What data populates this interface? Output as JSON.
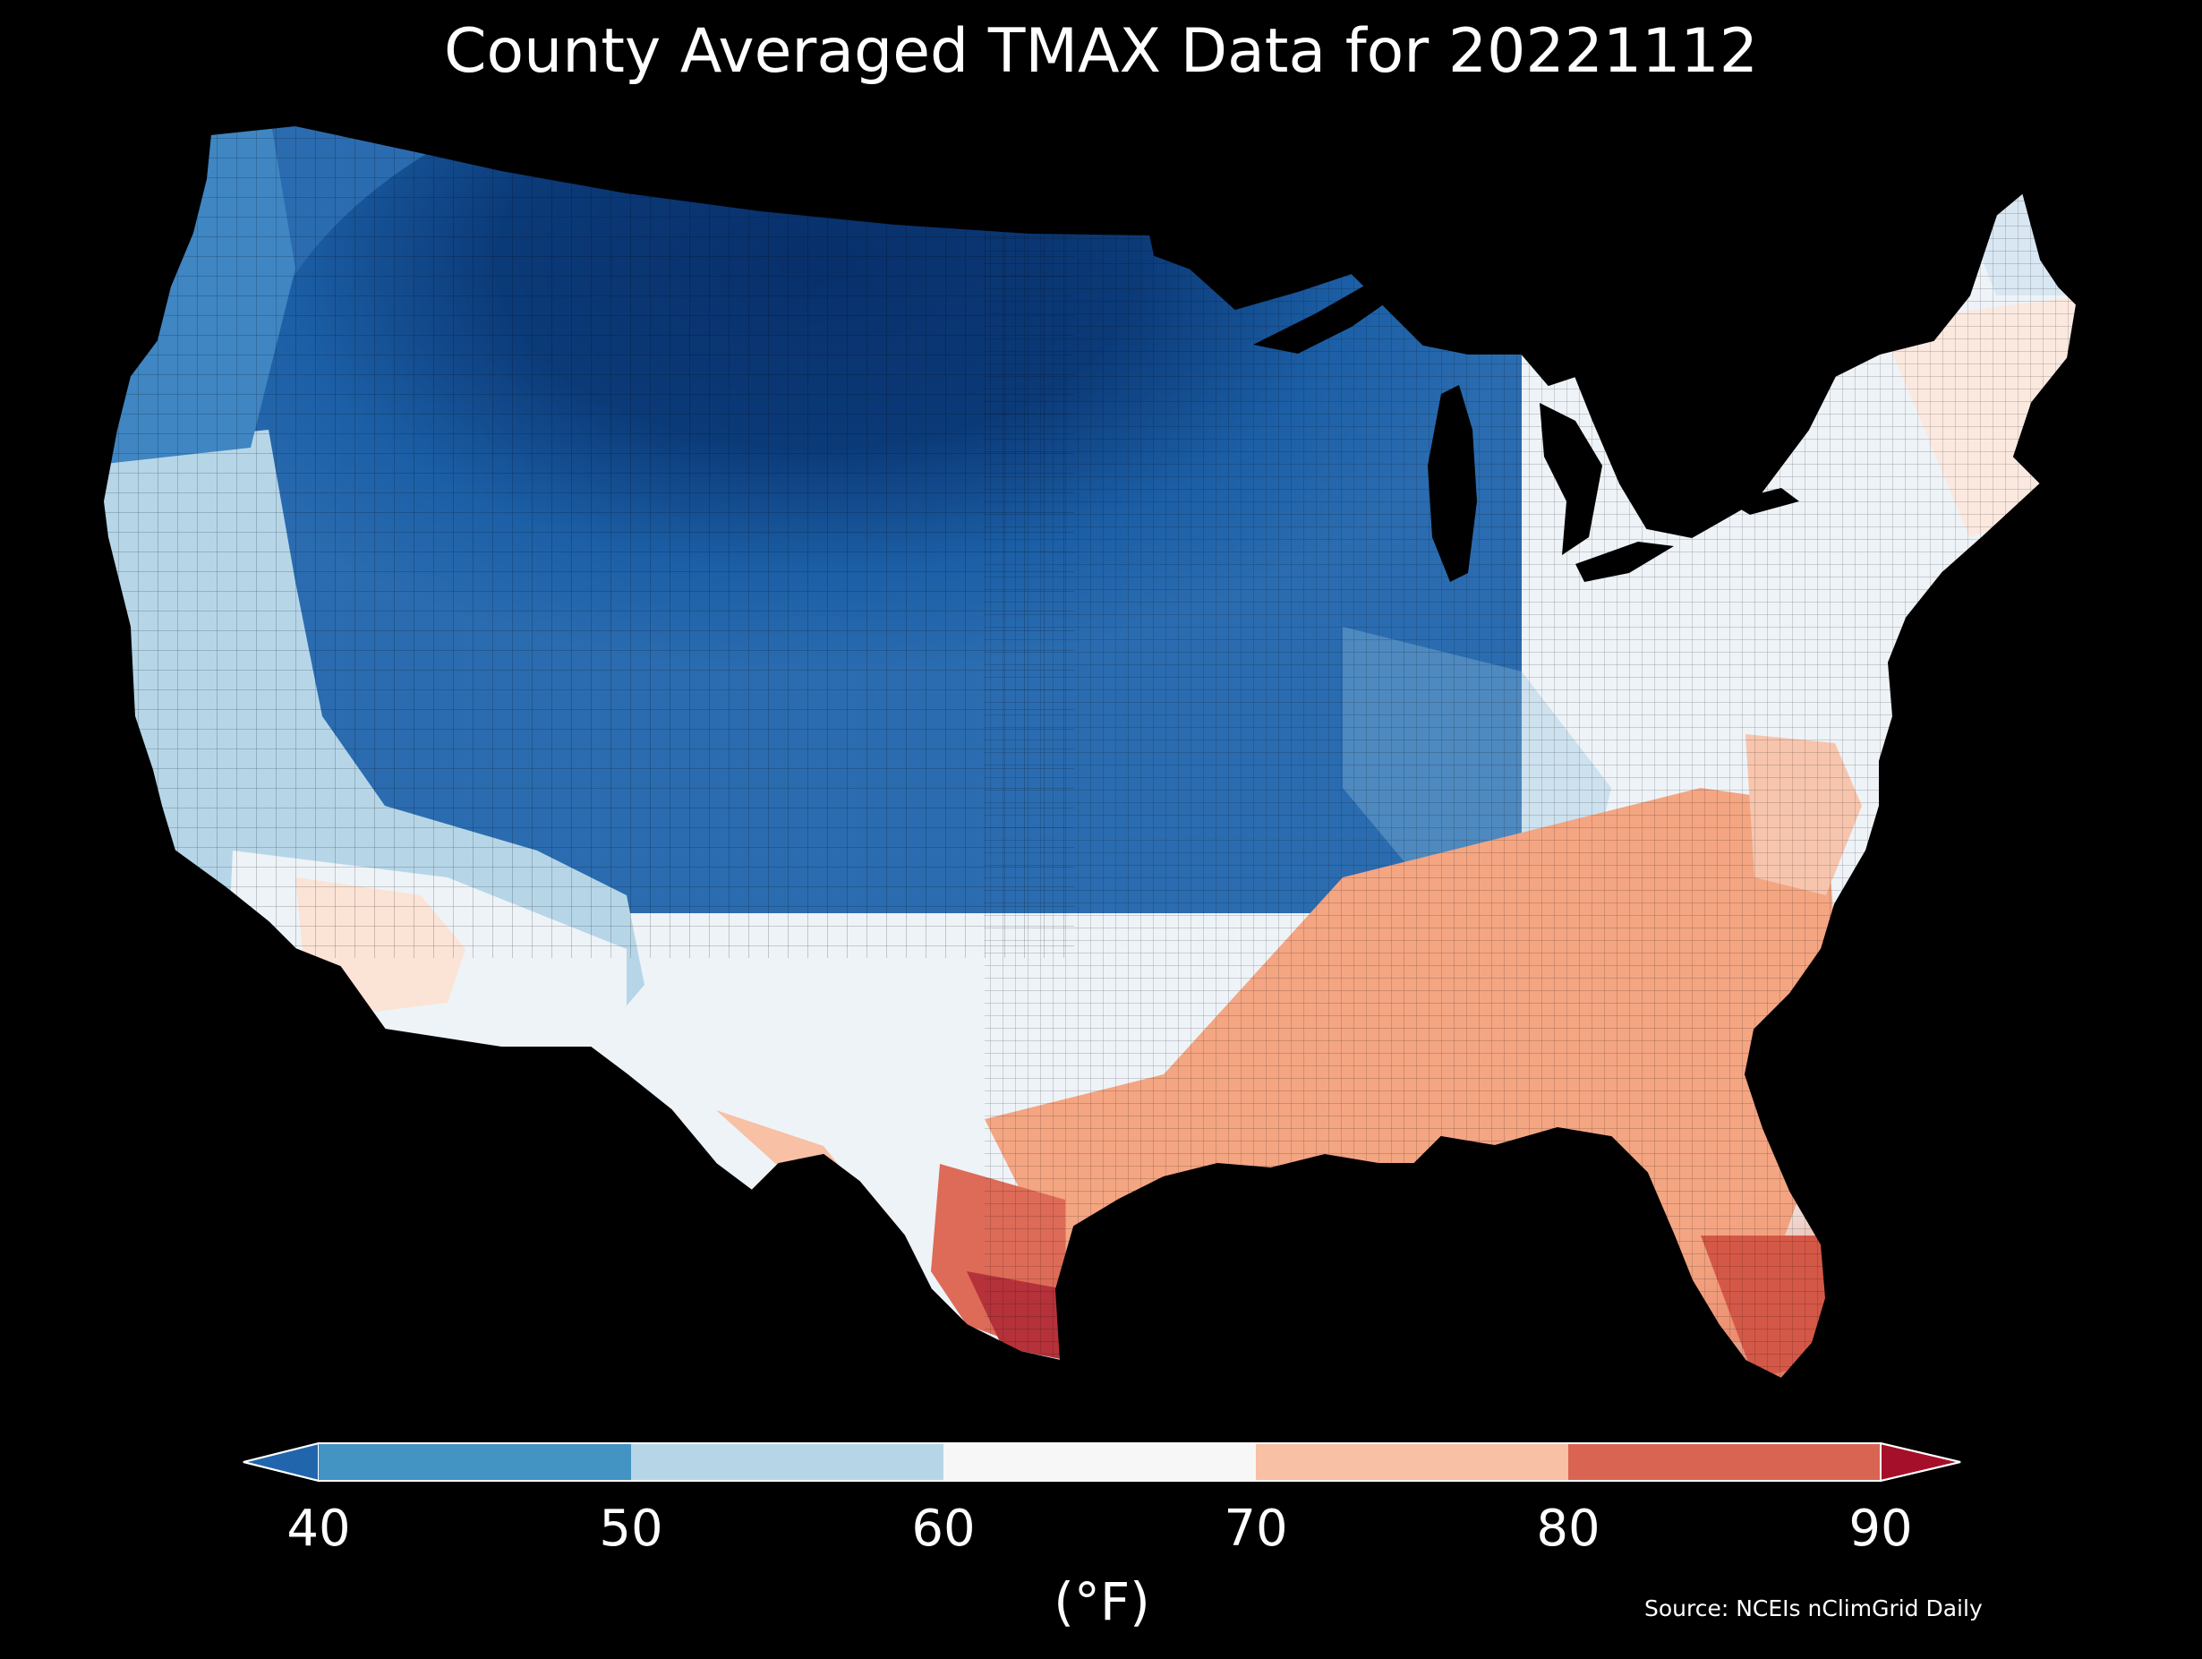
{
  "title": "County Averaged TMAX Data for 20221112",
  "colorbar": {
    "ticks": [
      "40",
      "50",
      "60",
      "70",
      "80",
      "90"
    ],
    "unit": "(°F)",
    "colors": [
      "#2166ac",
      "#4393c3",
      "#b6d6e8",
      "#f7f7f7",
      "#f8c0a4",
      "#da6452",
      "#a50f2a"
    ]
  },
  "source": "Source: NCEIs nClimGrid Daily",
  "colors": {
    "background": "#000000",
    "very_cold": "#08306b",
    "cold": "#2b6cb0",
    "cool": "#8fc0de",
    "mild": "#eef3f8",
    "warm": "#f4a582",
    "hot": "#c9483c"
  }
}
